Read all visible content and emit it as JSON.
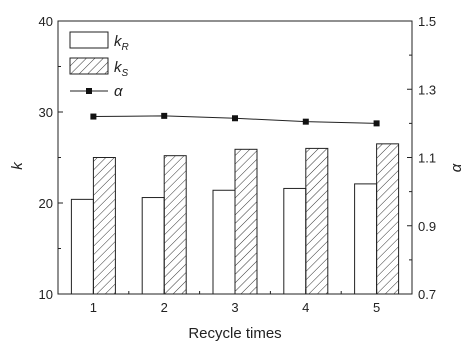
{
  "chart_data": {
    "type": "bar",
    "xlabel": "Recycle times",
    "ylabel_left": "k",
    "ylabel_right": "α",
    "categories": [
      "1",
      "2",
      "3",
      "4",
      "5"
    ],
    "ylim_left": [
      10,
      40
    ],
    "yticks_left": [
      10,
      20,
      30,
      40
    ],
    "ylim_right": [
      0.7,
      1.5
    ],
    "yticks_right": [
      "0.7",
      "0.9",
      "1.1",
      "1.3",
      "1.5"
    ],
    "series": [
      {
        "name": "k",
        "subscript": "R",
        "type": "bar",
        "pattern": "plain",
        "axis": "left",
        "values": [
          20.4,
          20.6,
          21.4,
          21.6,
          22.1
        ]
      },
      {
        "name": "k",
        "subscript": "S",
        "type": "bar",
        "pattern": "hatched",
        "axis": "left",
        "values": [
          25.0,
          25.2,
          25.9,
          26.0,
          26.5
        ]
      },
      {
        "name": "α",
        "subscript": "",
        "type": "line",
        "marker": "square",
        "axis": "right",
        "values": [
          1.22,
          1.222,
          1.215,
          1.205,
          1.2
        ]
      }
    ],
    "grid": false,
    "legend_position": "top-left"
  }
}
